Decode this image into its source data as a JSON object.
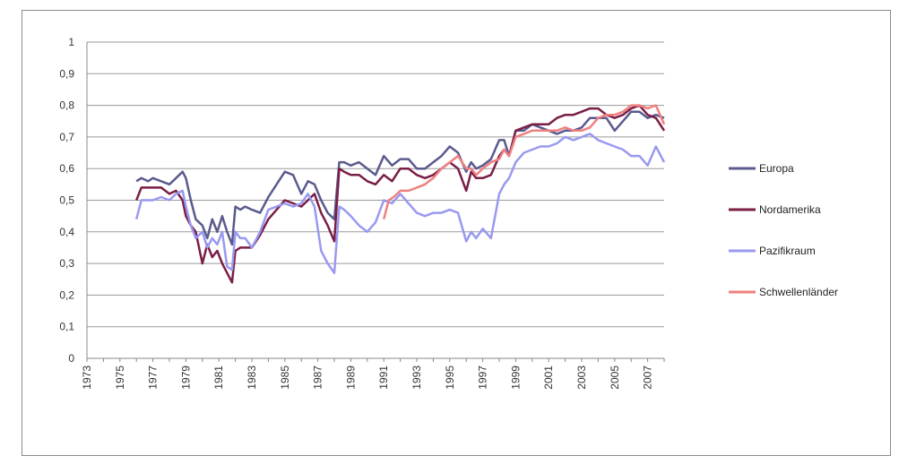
{
  "chart_data": {
    "type": "line",
    "title": "",
    "xlabel": "",
    "ylabel": "",
    "xlim": [
      1973,
      2008
    ],
    "ylim": [
      0,
      1
    ],
    "x_ticks": [
      "1973",
      "1975",
      "1977",
      "1979",
      "1981",
      "1983",
      "1985",
      "1987",
      "1989",
      "1991",
      "1993",
      "1995",
      "1997",
      "1999",
      "2001",
      "2003",
      "2005",
      "2007"
    ],
    "y_ticks": [
      "0",
      "0,1",
      "0,2",
      "0,3",
      "0,4",
      "0,5",
      "0,6",
      "0,7",
      "0,8",
      "0,9",
      "1"
    ],
    "grid": "horizontal",
    "legend_position": "right",
    "series": [
      {
        "name": "Europa",
        "color": "#5a5a8e",
        "x": [
          1976.0,
          1976.3,
          1976.7,
          1977.0,
          1977.5,
          1978.0,
          1978.4,
          1978.8,
          1979.0,
          1979.3,
          1979.6,
          1980.0,
          1980.3,
          1980.6,
          1980.9,
          1981.2,
          1981.5,
          1981.8,
          1982.0,
          1982.3,
          1982.6,
          1983.0,
          1983.5,
          1984.0,
          1984.5,
          1985.0,
          1985.5,
          1986.0,
          1986.4,
          1986.8,
          1987.2,
          1987.6,
          1988.0,
          1988.3,
          1988.6,
          1989.0,
          1989.5,
          1990.0,
          1990.5,
          1991.0,
          1991.5,
          1992.0,
          1992.5,
          1993.0,
          1993.5,
          1994.0,
          1994.5,
          1995.0,
          1995.5,
          1996.0,
          1996.3,
          1996.6,
          1997.0,
          1997.5,
          1998.0,
          1998.3,
          1998.6,
          1999.0,
          1999.5,
          2000.0,
          2000.5,
          2001.0,
          2001.5,
          2002.0,
          2002.5,
          2003.0,
          2003.5,
          2004.0,
          2004.5,
          2005.0,
          2005.5,
          2006.0,
          2006.5,
          2007.0,
          2007.5,
          2008.0
        ],
        "y": [
          0.56,
          0.57,
          0.56,
          0.57,
          0.56,
          0.55,
          0.57,
          0.59,
          0.57,
          0.5,
          0.44,
          0.42,
          0.38,
          0.44,
          0.4,
          0.45,
          0.4,
          0.36,
          0.48,
          0.47,
          0.48,
          0.47,
          0.46,
          0.51,
          0.55,
          0.59,
          0.58,
          0.52,
          0.56,
          0.55,
          0.5,
          0.46,
          0.44,
          0.62,
          0.62,
          0.61,
          0.62,
          0.6,
          0.58,
          0.64,
          0.61,
          0.63,
          0.63,
          0.6,
          0.6,
          0.62,
          0.64,
          0.67,
          0.65,
          0.59,
          0.62,
          0.6,
          0.61,
          0.63,
          0.69,
          0.69,
          0.64,
          0.72,
          0.72,
          0.74,
          0.73,
          0.72,
          0.71,
          0.72,
          0.72,
          0.73,
          0.76,
          0.76,
          0.76,
          0.72,
          0.75,
          0.78,
          0.78,
          0.76,
          0.77,
          0.76
        ]
      },
      {
        "name": "Nordamerika",
        "color": "#7a1e46",
        "x": [
          1976.0,
          1976.3,
          1976.7,
          1977.0,
          1977.5,
          1978.0,
          1978.4,
          1978.8,
          1979.0,
          1979.3,
          1979.6,
          1980.0,
          1980.3,
          1980.6,
          1980.9,
          1981.2,
          1981.5,
          1981.8,
          1982.0,
          1982.3,
          1982.6,
          1983.0,
          1983.5,
          1984.0,
          1984.5,
          1985.0,
          1985.5,
          1986.0,
          1986.4,
          1986.8,
          1987.2,
          1987.6,
          1988.0,
          1988.3,
          1988.6,
          1989.0,
          1989.5,
          1990.0,
          1990.5,
          1991.0,
          1991.5,
          1992.0,
          1992.5,
          1993.0,
          1993.5,
          1994.0,
          1994.5,
          1995.0,
          1995.5,
          1996.0,
          1996.3,
          1996.6,
          1997.0,
          1997.5,
          1998.0,
          1998.3,
          1998.6,
          1999.0,
          1999.5,
          2000.0,
          2000.5,
          2001.0,
          2001.5,
          2002.0,
          2002.5,
          2003.0,
          2003.5,
          2004.0,
          2004.5,
          2005.0,
          2005.5,
          2006.0,
          2006.5,
          2007.0,
          2007.5,
          2008.0
        ],
        "y": [
          0.5,
          0.54,
          0.54,
          0.54,
          0.54,
          0.52,
          0.53,
          0.5,
          0.45,
          0.42,
          0.4,
          0.3,
          0.36,
          0.32,
          0.34,
          0.3,
          0.27,
          0.24,
          0.34,
          0.35,
          0.35,
          0.35,
          0.39,
          0.44,
          0.47,
          0.5,
          0.49,
          0.48,
          0.5,
          0.52,
          0.46,
          0.42,
          0.37,
          0.6,
          0.59,
          0.58,
          0.58,
          0.56,
          0.55,
          0.58,
          0.56,
          0.6,
          0.6,
          0.58,
          0.57,
          0.58,
          0.6,
          0.62,
          0.6,
          0.53,
          0.59,
          0.57,
          0.57,
          0.58,
          0.64,
          0.66,
          0.64,
          0.72,
          0.73,
          0.74,
          0.74,
          0.74,
          0.76,
          0.77,
          0.77,
          0.78,
          0.79,
          0.79,
          0.77,
          0.76,
          0.77,
          0.79,
          0.8,
          0.77,
          0.76,
          0.72
        ]
      },
      {
        "name": "Pazifikraum",
        "color": "#9999f0",
        "x": [
          1976.0,
          1976.3,
          1976.7,
          1977.0,
          1977.5,
          1978.0,
          1978.4,
          1978.8,
          1979.0,
          1979.3,
          1979.6,
          1980.0,
          1980.3,
          1980.6,
          1980.9,
          1981.2,
          1981.5,
          1981.8,
          1982.0,
          1982.3,
          1982.6,
          1983.0,
          1983.5,
          1984.0,
          1984.5,
          1985.0,
          1985.5,
          1986.0,
          1986.4,
          1986.8,
          1987.2,
          1987.6,
          1988.0,
          1988.3,
          1988.6,
          1989.0,
          1989.5,
          1990.0,
          1990.5,
          1991.0,
          1991.5,
          1992.0,
          1992.5,
          1993.0,
          1993.5,
          1994.0,
          1994.5,
          1995.0,
          1995.5,
          1996.0,
          1996.3,
          1996.6,
          1997.0,
          1997.5,
          1998.0,
          1998.3,
          1998.6,
          1999.0,
          1999.5,
          2000.0,
          2000.5,
          2001.0,
          2001.5,
          2002.0,
          2002.5,
          2003.0,
          2003.5,
          2004.0,
          2004.5,
          2005.0,
          2005.5,
          2006.0,
          2006.5,
          2007.0,
          2007.5,
          2008.0
        ],
        "y": [
          0.44,
          0.5,
          0.5,
          0.5,
          0.51,
          0.5,
          0.52,
          0.53,
          0.48,
          0.42,
          0.38,
          0.4,
          0.35,
          0.38,
          0.36,
          0.4,
          0.29,
          0.28,
          0.4,
          0.38,
          0.38,
          0.35,
          0.4,
          0.47,
          0.48,
          0.49,
          0.48,
          0.49,
          0.52,
          0.48,
          0.34,
          0.3,
          0.27,
          0.48,
          0.47,
          0.45,
          0.42,
          0.4,
          0.43,
          0.5,
          0.49,
          0.52,
          0.49,
          0.46,
          0.45,
          0.46,
          0.46,
          0.47,
          0.46,
          0.37,
          0.4,
          0.38,
          0.41,
          0.38,
          0.52,
          0.55,
          0.57,
          0.62,
          0.65,
          0.66,
          0.67,
          0.67,
          0.68,
          0.7,
          0.69,
          0.7,
          0.71,
          0.69,
          0.68,
          0.67,
          0.66,
          0.64,
          0.64,
          0.61,
          0.67,
          0.62
        ]
      },
      {
        "name": "Schwellenländer",
        "color": "#f08080",
        "x": [
          1991.0,
          1991.3,
          1991.6,
          1992.0,
          1992.5,
          1993.0,
          1993.5,
          1994.0,
          1994.5,
          1995.0,
          1995.5,
          1996.0,
          1996.3,
          1996.6,
          1997.0,
          1997.5,
          1998.0,
          1998.3,
          1998.6,
          1999.0,
          1999.5,
          2000.0,
          2000.5,
          2001.0,
          2001.5,
          2002.0,
          2002.5,
          2003.0,
          2003.5,
          2004.0,
          2004.5,
          2005.0,
          2005.5,
          2006.0,
          2006.5,
          2007.0,
          2007.5,
          2008.0
        ],
        "y": [
          0.44,
          0.5,
          0.51,
          0.53,
          0.53,
          0.54,
          0.55,
          0.57,
          0.6,
          0.62,
          0.64,
          0.6,
          0.6,
          0.58,
          0.6,
          0.62,
          0.63,
          0.66,
          0.64,
          0.7,
          0.71,
          0.72,
          0.72,
          0.72,
          0.72,
          0.73,
          0.72,
          0.72,
          0.73,
          0.76,
          0.77,
          0.77,
          0.78,
          0.8,
          0.8,
          0.79,
          0.8,
          0.74
        ]
      }
    ]
  }
}
